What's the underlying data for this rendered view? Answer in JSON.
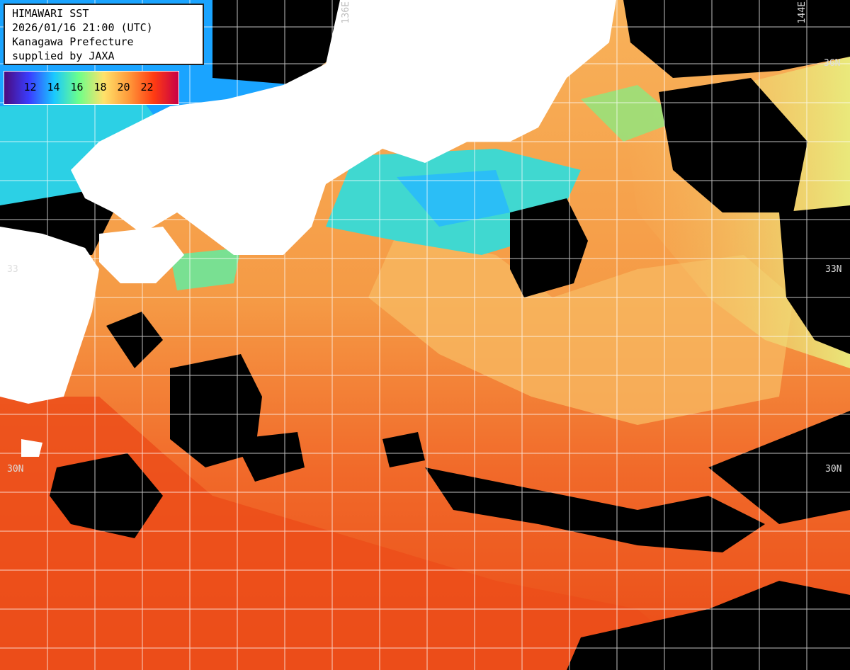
{
  "header": {
    "lines": [
      "HIMAWARI SST",
      "2026/01/16 21:00 (UTC)",
      "Kanagawa Prefecture",
      "supplied by JAXA"
    ]
  },
  "legend": {
    "ticks": [
      "12",
      "14",
      "16",
      "18",
      "20",
      "22"
    ],
    "colors": [
      "#4b0a7d",
      "#3a3dff",
      "#19c8ff",
      "#6cff8a",
      "#ffe26a",
      "#ff9a3a",
      "#ff3c12",
      "#c80046"
    ]
  },
  "grid_labels": {
    "lon_136": "136E",
    "lon_144": "144E",
    "lat_36": "36N",
    "lat_33_left": "33",
    "lat_33_right": "33N",
    "lat_30_left": "30N",
    "lat_30_right": "30N"
  },
  "colors": {
    "land": "#ffffff",
    "cloud": "#000000",
    "sea_warm": "#f5802f",
    "sea_hot": "#ef4a1a",
    "sea_mild": "#f8c068",
    "sea_cool": "#c8f070",
    "sea_cold": "#40e0d0",
    "sea_colder": "#1aa4ff",
    "grid": "#ffffff"
  }
}
